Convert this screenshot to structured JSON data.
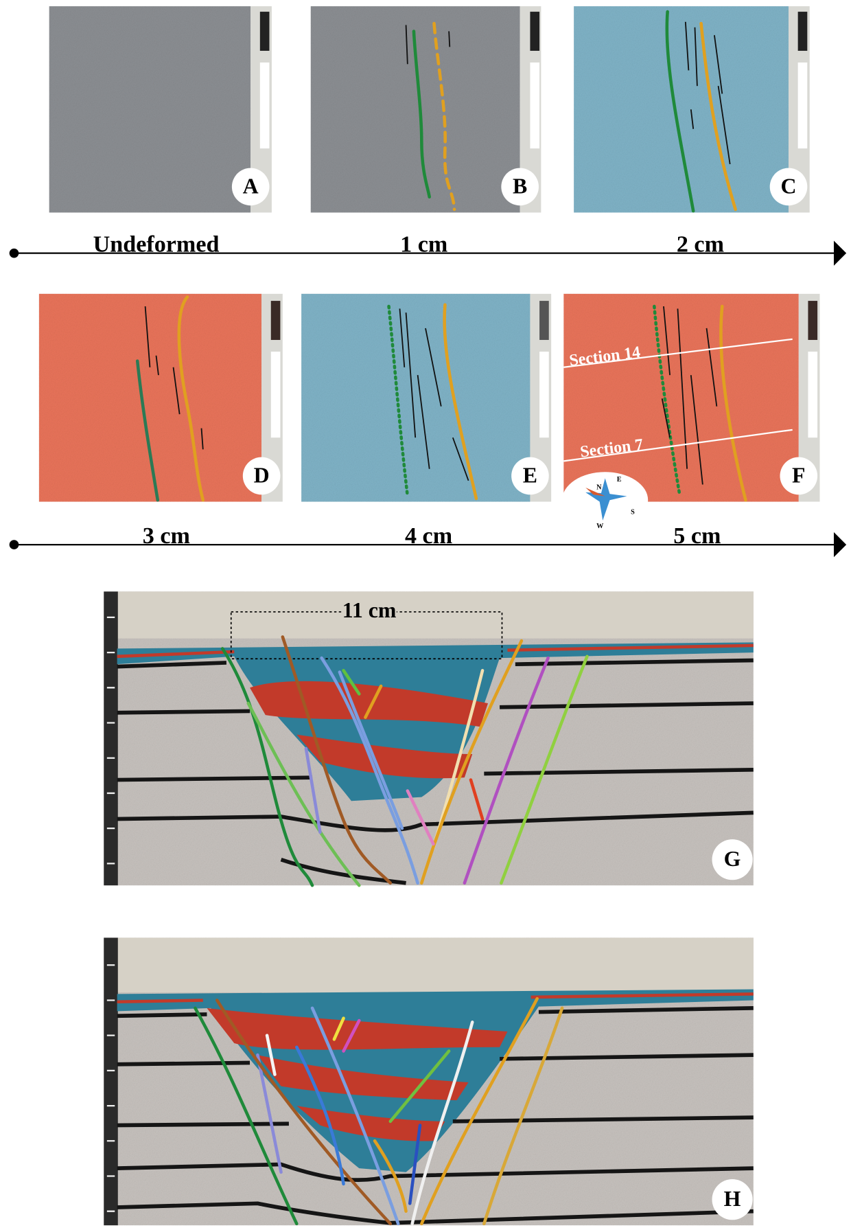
{
  "panels": [
    {
      "label": "A"
    },
    {
      "label": "B"
    },
    {
      "label": "C"
    },
    {
      "label": "D"
    },
    {
      "label": "E"
    },
    {
      "label": "F"
    },
    {
      "label": "G"
    },
    {
      "label": "H"
    }
  ],
  "timeline": [
    [
      "Undeformed",
      "1 cm",
      "2 cm"
    ],
    [
      "3 cm",
      "4 cm",
      "5 cm"
    ]
  ],
  "section_labels": [
    "Section 14",
    "Section 7"
  ],
  "compass": [
    "N",
    "E",
    "S",
    "W"
  ],
  "width_label": "11 cm"
}
